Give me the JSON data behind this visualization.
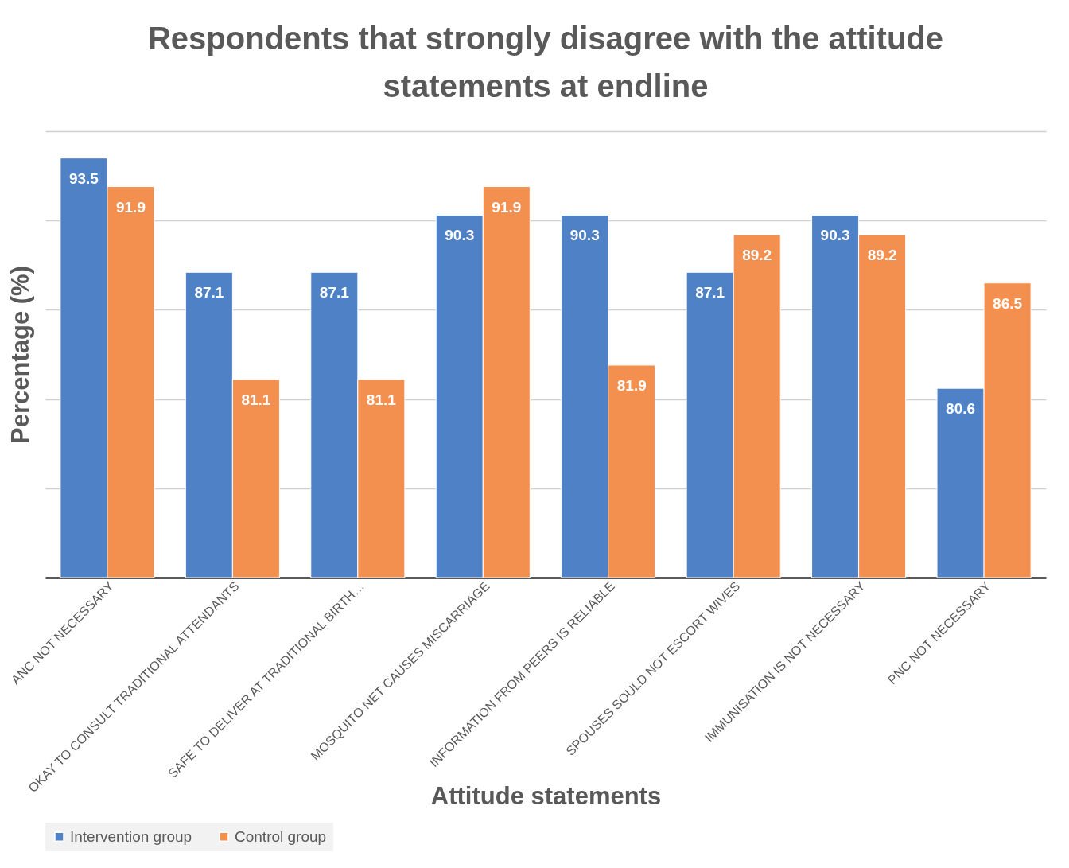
{
  "chart_data": {
    "type": "bar",
    "title": "Respondents that strongly disagree with the attitude statements at endline",
    "xlabel": "Attitude statements",
    "ylabel": "Percentage (%)",
    "categories": [
      "ANC NOT NECESSARY",
      "OKAY TO CONSULT TRADITIONAL ATTENDANTS",
      "SAFE TO DELIVER AT TRADITIONAL BIRTH…",
      "MOSQUITO NET CAUSES MISCARRIAGE",
      "INFORMATION FROM PEERS IS RELIABLE",
      "SPOUSES SOULD NOT ESCORT WIVES",
      "IMMUNISATION IS NOT NECESSARY",
      "PNC NOT NECESSARY"
    ],
    "series": [
      {
        "name": "Intervention group",
        "color": "#4f81c6",
        "values": [
          93.5,
          87.1,
          87.1,
          90.3,
          90.3,
          87.1,
          90.3,
          80.6
        ]
      },
      {
        "name": "Control group",
        "color": "#f38f4f",
        "values": [
          91.9,
          81.1,
          81.1,
          91.9,
          81.9,
          89.2,
          89.2,
          86.5
        ]
      }
    ],
    "ylim": [
      70,
      95
    ],
    "yticks": [
      {
        "value": 70,
        "label": null
      },
      {
        "value": 75,
        "label": null
      },
      {
        "value": 80,
        "label": null
      },
      {
        "value": 85,
        "label": null
      },
      {
        "value": 90,
        "label": null
      },
      {
        "value": 95,
        "label": null
      }
    ],
    "tick_labels": "x",
    "grid": "y",
    "data_labels": true,
    "legend": "bottom"
  }
}
